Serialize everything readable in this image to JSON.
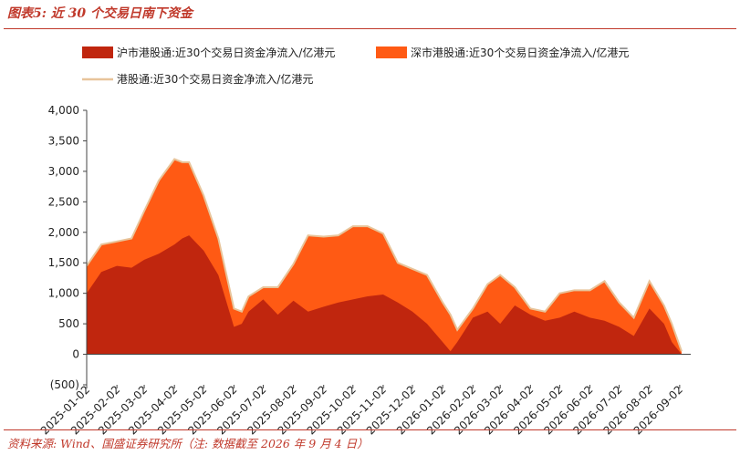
{
  "header": {
    "title": "图表5:  近 30 个交易日南下资金"
  },
  "footer": {
    "source": "资料来源:  Wind、国盛证券研究所（注:  数据截至 2026 年 9 月 4 日）"
  },
  "chart_data": {
    "type": "area",
    "ylim": [
      -500,
      4000
    ],
    "yticks": [
      "(500)",
      "0",
      "500",
      "1,000",
      "1,500",
      "2,000",
      "2,500",
      "3,000",
      "3,500",
      "4,000"
    ],
    "ytick_values": [
      -500,
      0,
      500,
      1000,
      1500,
      2000,
      2500,
      3000,
      3500,
      4000
    ],
    "xticks": [
      "2025-01-02",
      "2025-02-02",
      "2025-03-02",
      "2025-04-02",
      "2025-05-02",
      "2025-06-02",
      "2025-07-02",
      "2025-08-02",
      "2025-09-02",
      "2025-10-02",
      "2025-11-02",
      "2025-12-02",
      "2026-01-02",
      "2026-02-02",
      "2026-03-02",
      "2026-04-02",
      "2026-05-02",
      "2026-06-02",
      "2026-07-02",
      "2026-08-02",
      "2026-09-02"
    ],
    "x": [
      "2025-01-02",
      "2025-01-17",
      "2025-02-02",
      "2025-02-17",
      "2025-03-02",
      "2025-03-17",
      "2025-04-02",
      "2025-04-10",
      "2025-04-17",
      "2025-05-02",
      "2025-05-17",
      "2025-06-02",
      "2025-06-10",
      "2025-06-17",
      "2025-07-02",
      "2025-07-17",
      "2025-08-02",
      "2025-08-17",
      "2025-09-02",
      "2025-09-17",
      "2025-10-02",
      "2025-10-17",
      "2025-11-02",
      "2025-11-17",
      "2025-12-02",
      "2025-12-17",
      "2026-01-02",
      "2026-01-10",
      "2026-01-17",
      "2026-02-02",
      "2026-02-17",
      "2026-03-02",
      "2026-03-17",
      "2026-04-02",
      "2026-04-17",
      "2026-05-02",
      "2026-05-17",
      "2026-06-02",
      "2026-06-17",
      "2026-07-02",
      "2026-07-17",
      "2026-08-02",
      "2026-08-17",
      "2026-08-25",
      "2026-09-04"
    ],
    "series": [
      {
        "name": "沪市港股通:近30个交易日资金净流入/亿港元",
        "color": "#c0260e",
        "values": [
          1000,
          1350,
          1450,
          1420,
          1550,
          1650,
          1800,
          1900,
          1950,
          1700,
          1300,
          450,
          500,
          700,
          900,
          650,
          880,
          700,
          780,
          850,
          900,
          950,
          980,
          850,
          700,
          500,
          200,
          50,
          200,
          600,
          700,
          500,
          800,
          650,
          550,
          600,
          700,
          600,
          550,
          450,
          300,
          750,
          500,
          200,
          0
        ]
      },
      {
        "name": "深市港股通:近30个交易日资金净流入/亿港元",
        "color": "#ff5a14",
        "values": [
          450,
          450,
          400,
          480,
          800,
          1200,
          1400,
          1250,
          1200,
          900,
          600,
          300,
          200,
          250,
          200,
          450,
          600,
          1250,
          1150,
          1100,
          1200,
          1150,
          1000,
          650,
          700,
          800,
          650,
          600,
          200,
          150,
          450,
          800,
          300,
          100,
          150,
          400,
          350,
          450,
          650,
          400,
          300,
          450,
          300,
          300,
          50
        ]
      },
      {
        "name": "港股通:近30个交易日资金净流入/亿港元",
        "color": "#e8c49a",
        "values": [
          1450,
          1800,
          1850,
          1900,
          2350,
          2850,
          3200,
          3150,
          3150,
          2600,
          1900,
          750,
          700,
          950,
          1100,
          1100,
          1480,
          1950,
          1930,
          1950,
          2100,
          2100,
          1980,
          1500,
          1400,
          1300,
          850,
          650,
          400,
          750,
          1150,
          1300,
          1100,
          750,
          700,
          1000,
          1050,
          1050,
          1200,
          850,
          600,
          1200,
          800,
          500,
          50
        ]
      }
    ]
  }
}
